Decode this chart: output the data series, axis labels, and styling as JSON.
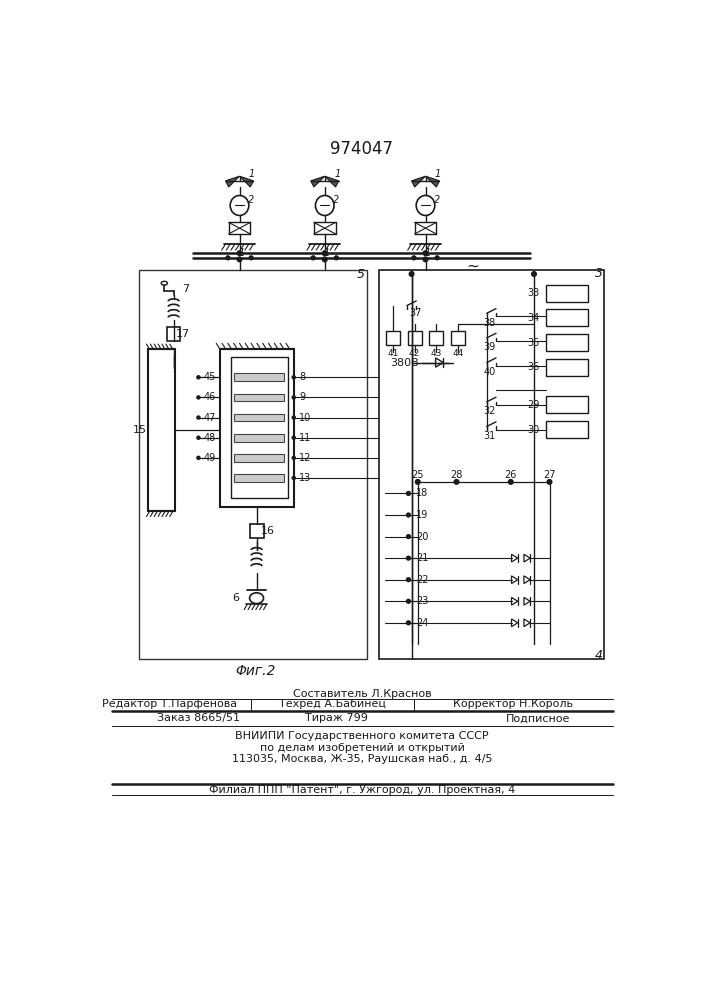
{
  "title": "974047",
  "fig_label": "Φиг.2",
  "bg": "#f5f5f0",
  "lc": "#1a1a1a",
  "footer": {
    "sestavitel": "Составитель Л.Краснов",
    "redaktor": "Редактор Т.Парфенова",
    "tehred": "Техред А.Бабинец",
    "korrektor": "Корректор Н.Король",
    "zakaz": "Заказ 8665/51",
    "tirazh": "Тираж 799",
    "podpisnoe": "Подписное",
    "vniipи1": "ВНИИПИ Государственного комитета СССР",
    "vniipи2": "по делам изобретений и открытий",
    "vniipи3": "113035, Москва, Ж-35, Раушская наб., д. 4/5",
    "filial": "Филиал ППП \"Патент\", г. Ужгород, ул. Проектная, 4"
  }
}
